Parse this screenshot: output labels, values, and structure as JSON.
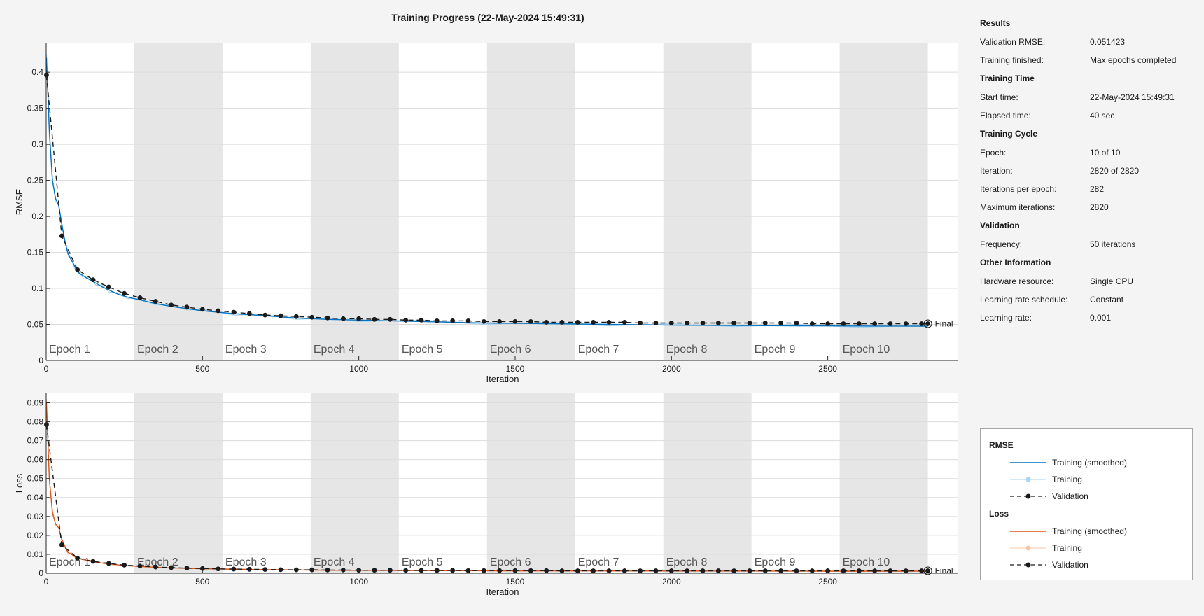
{
  "title": "Training Progress (22-May-2024 15:49:31)",
  "colors": {
    "rmse_smoothed": "#0072bd",
    "rmse_raw": "#a8d4f5",
    "loss_smoothed": "#d95319",
    "loss_raw": "#f6c7a6",
    "validation": "#1a1a1a",
    "epoch_shade": "#e6e6e6",
    "grid": "#dcdcdc"
  },
  "side": {
    "results": {
      "head": "Results",
      "rows": [
        {
          "label": "Validation RMSE:",
          "value": "0.051423"
        },
        {
          "label": "Training finished:",
          "value": "Max epochs completed"
        }
      ]
    },
    "time": {
      "head": "Training Time",
      "rows": [
        {
          "label": "Start time:",
          "value": "22-May-2024 15:49:31"
        },
        {
          "label": "Elapsed time:",
          "value": "40 sec"
        }
      ]
    },
    "cycle": {
      "head": "Training Cycle",
      "rows": [
        {
          "label": "Epoch:",
          "value": "10 of 10"
        },
        {
          "label": "Iteration:",
          "value": "2820 of 2820"
        },
        {
          "label": "Iterations per epoch:",
          "value": "282"
        },
        {
          "label": "Maximum iterations:",
          "value": "2820"
        }
      ]
    },
    "validation": {
      "head": "Validation",
      "rows": [
        {
          "label": "Frequency:",
          "value": "50 iterations"
        }
      ]
    },
    "other": {
      "head": "Other Information",
      "rows": [
        {
          "label": "Hardware resource:",
          "value": "Single CPU"
        },
        {
          "label": "Learning rate schedule:",
          "value": "Constant"
        },
        {
          "label": "Learning rate:",
          "value": "0.001"
        }
      ]
    }
  },
  "legend": {
    "rmse_head": "RMSE",
    "loss_head": "Loss",
    "smoothed": "Training (smoothed)",
    "training": "Training",
    "validation": "Validation"
  },
  "chart_data": [
    {
      "type": "line",
      "title": "Training Progress (22-May-2024 15:49:31)",
      "xlabel": "Iteration",
      "ylabel": "RMSE",
      "xlim": [
        0,
        2915
      ],
      "ylim": [
        0,
        0.44
      ],
      "xticks": [
        0,
        500,
        1000,
        1500,
        2000,
        2500
      ],
      "yticks": [
        0,
        0.05,
        0.1,
        0.15,
        0.2,
        0.25,
        0.3,
        0.35,
        0.4
      ],
      "ytick_labels": [
        "0",
        "0.05",
        "0.1",
        "0.15",
        "0.2",
        "0.25",
        "0.3",
        "0.35",
        "0.4"
      ],
      "epochs": [
        "Epoch 1",
        "Epoch 2",
        "Epoch 3",
        "Epoch 4",
        "Epoch 5",
        "Epoch 6",
        "Epoch 7",
        "Epoch 8",
        "Epoch 9",
        "Epoch 10"
      ],
      "iterations_per_epoch": 282,
      "final_label": "Final",
      "series": [
        {
          "name": "Training (smoothed)",
          "x": [
            1,
            10,
            20,
            30,
            40,
            50,
            60,
            70,
            80,
            90,
            100,
            120,
            140,
            160,
            180,
            200,
            230,
            260,
            300,
            350,
            400,
            450,
            500,
            600,
            700,
            800,
            900,
            1000,
            1200,
            1400,
            1600,
            1800,
            2000,
            2200,
            2400,
            2600,
            2820
          ],
          "y": [
            0.42,
            0.32,
            0.25,
            0.225,
            0.215,
            0.19,
            0.165,
            0.148,
            0.14,
            0.132,
            0.123,
            0.117,
            0.112,
            0.107,
            0.102,
            0.098,
            0.092,
            0.088,
            0.084,
            0.079,
            0.075,
            0.072,
            0.069,
            0.065,
            0.062,
            0.059,
            0.057,
            0.056,
            0.054,
            0.052,
            0.051,
            0.05,
            0.049,
            0.0485,
            0.048,
            0.0478,
            0.0475
          ]
        },
        {
          "name": "Training",
          "x": [
            1,
            10,
            20,
            30,
            40,
            50,
            60,
            70,
            80,
            90,
            100,
            120,
            140,
            160,
            180,
            200,
            230,
            260,
            300,
            350,
            400,
            450,
            500,
            600,
            700,
            800,
            900,
            1000,
            1200,
            1400,
            1600,
            1800,
            2000,
            2200,
            2400,
            2600,
            2820
          ],
          "y": [
            0.425,
            0.31,
            0.255,
            0.22,
            0.218,
            0.185,
            0.168,
            0.145,
            0.143,
            0.128,
            0.126,
            0.113,
            0.116,
            0.104,
            0.105,
            0.095,
            0.094,
            0.086,
            0.086,
            0.077,
            0.077,
            0.07,
            0.071,
            0.063,
            0.064,
            0.057,
            0.059,
            0.054,
            0.056,
            0.05,
            0.053,
            0.048,
            0.051,
            0.047,
            0.05,
            0.046,
            0.049
          ]
        },
        {
          "name": "Validation",
          "x": [
            1,
            50,
            100,
            150,
            200,
            250,
            300,
            350,
            400,
            450,
            500,
            550,
            600,
            650,
            700,
            750,
            800,
            850,
            900,
            950,
            1000,
            1050,
            1100,
            1150,
            1200,
            1250,
            1300,
            1350,
            1400,
            1450,
            1500,
            1550,
            1600,
            1650,
            1700,
            1750,
            1800,
            1850,
            1900,
            1950,
            2000,
            2050,
            2100,
            2150,
            2200,
            2250,
            2300,
            2350,
            2400,
            2450,
            2500,
            2550,
            2600,
            2650,
            2700,
            2750,
            2800,
            2820
          ],
          "y": [
            0.396,
            0.173,
            0.126,
            0.112,
            0.102,
            0.093,
            0.087,
            0.082,
            0.077,
            0.074,
            0.071,
            0.069,
            0.067,
            0.065,
            0.063,
            0.062,
            0.061,
            0.06,
            0.059,
            0.058,
            0.058,
            0.057,
            0.057,
            0.056,
            0.056,
            0.055,
            0.055,
            0.055,
            0.054,
            0.054,
            0.054,
            0.054,
            0.053,
            0.053,
            0.053,
            0.053,
            0.053,
            0.053,
            0.052,
            0.052,
            0.052,
            0.052,
            0.052,
            0.052,
            0.052,
            0.052,
            0.052,
            0.052,
            0.052,
            0.051,
            0.051,
            0.051,
            0.051,
            0.051,
            0.051,
            0.051,
            0.051,
            0.051
          ]
        }
      ]
    },
    {
      "type": "line",
      "xlabel": "Iteration",
      "ylabel": "Loss",
      "xlim": [
        0,
        2915
      ],
      "ylim": [
        0,
        0.095
      ],
      "xticks": [
        0,
        500,
        1000,
        1500,
        2000,
        2500
      ],
      "yticks": [
        0,
        0.01,
        0.02,
        0.03,
        0.04,
        0.05,
        0.06,
        0.07,
        0.08,
        0.09
      ],
      "ytick_labels": [
        "0",
        "0.01",
        "0.02",
        "0.03",
        "0.04",
        "0.05",
        "0.06",
        "0.07",
        "0.08",
        "0.09"
      ],
      "epochs": [
        "Epoch 1",
        "Epoch 2",
        "Epoch 3",
        "Epoch 4",
        "Epoch 5",
        "Epoch 6",
        "Epoch 7",
        "Epoch 8",
        "Epoch 9",
        "Epoch 10"
      ],
      "iterations_per_epoch": 282,
      "final_label": "Final",
      "series": [
        {
          "name": "Training (smoothed)",
          "x": [
            1,
            10,
            20,
            30,
            40,
            50,
            60,
            70,
            80,
            90,
            100,
            130,
            160,
            200,
            250,
            300,
            400,
            500,
            700,
            900,
            1200,
            1500,
            2000,
            2500,
            2820
          ],
          "y": [
            0.09,
            0.05,
            0.032,
            0.026,
            0.024,
            0.018,
            0.014,
            0.011,
            0.01,
            0.009,
            0.008,
            0.0068,
            0.0058,
            0.0049,
            0.0041,
            0.0036,
            0.0028,
            0.0024,
            0.0019,
            0.0016,
            0.0014,
            0.0013,
            0.0012,
            0.0011,
            0.0011
          ]
        },
        {
          "name": "Training",
          "x": [
            1,
            10,
            20,
            30,
            40,
            50,
            60,
            70,
            80,
            90,
            100,
            130,
            160,
            200,
            250,
            300,
            400,
            500,
            700,
            900,
            1200,
            1500,
            2000,
            2500,
            2820
          ],
          "y": [
            0.092,
            0.048,
            0.034,
            0.025,
            0.025,
            0.017,
            0.015,
            0.01,
            0.011,
            0.0085,
            0.0085,
            0.0064,
            0.0061,
            0.0046,
            0.0043,
            0.0034,
            0.0029,
            0.0023,
            0.002,
            0.0015,
            0.0015,
            0.0012,
            0.0013,
            0.001,
            0.0012
          ]
        },
        {
          "name": "Validation",
          "x": [
            1,
            50,
            100,
            150,
            200,
            250,
            300,
            350,
            400,
            450,
            500,
            550,
            600,
            650,
            700,
            750,
            800,
            850,
            900,
            950,
            1000,
            1050,
            1100,
            1150,
            1200,
            1250,
            1300,
            1350,
            1400,
            1450,
            1500,
            1550,
            1600,
            1650,
            1700,
            1750,
            1800,
            1850,
            1900,
            1950,
            2000,
            2050,
            2100,
            2150,
            2200,
            2250,
            2300,
            2350,
            2400,
            2450,
            2500,
            2550,
            2600,
            2650,
            2700,
            2750,
            2800,
            2820
          ],
          "y": [
            0.0785,
            0.015,
            0.008,
            0.0063,
            0.0052,
            0.0043,
            0.0038,
            0.0033,
            0.003,
            0.0027,
            0.0025,
            0.0023,
            0.0022,
            0.0021,
            0.002,
            0.0019,
            0.0018,
            0.0018,
            0.0017,
            0.0017,
            0.0016,
            0.0016,
            0.0016,
            0.0015,
            0.0015,
            0.0015,
            0.0015,
            0.0014,
            0.0014,
            0.0014,
            0.0014,
            0.0014,
            0.0014,
            0.0013,
            0.0013,
            0.0013,
            0.0013,
            0.0013,
            0.0013,
            0.0013,
            0.0013,
            0.0013,
            0.0013,
            0.0013,
            0.0013,
            0.0013,
            0.0013,
            0.0013,
            0.0013,
            0.0013,
            0.0013,
            0.0013,
            0.0013,
            0.0013,
            0.0013,
            0.0013,
            0.0013,
            0.0013
          ]
        }
      ]
    }
  ]
}
